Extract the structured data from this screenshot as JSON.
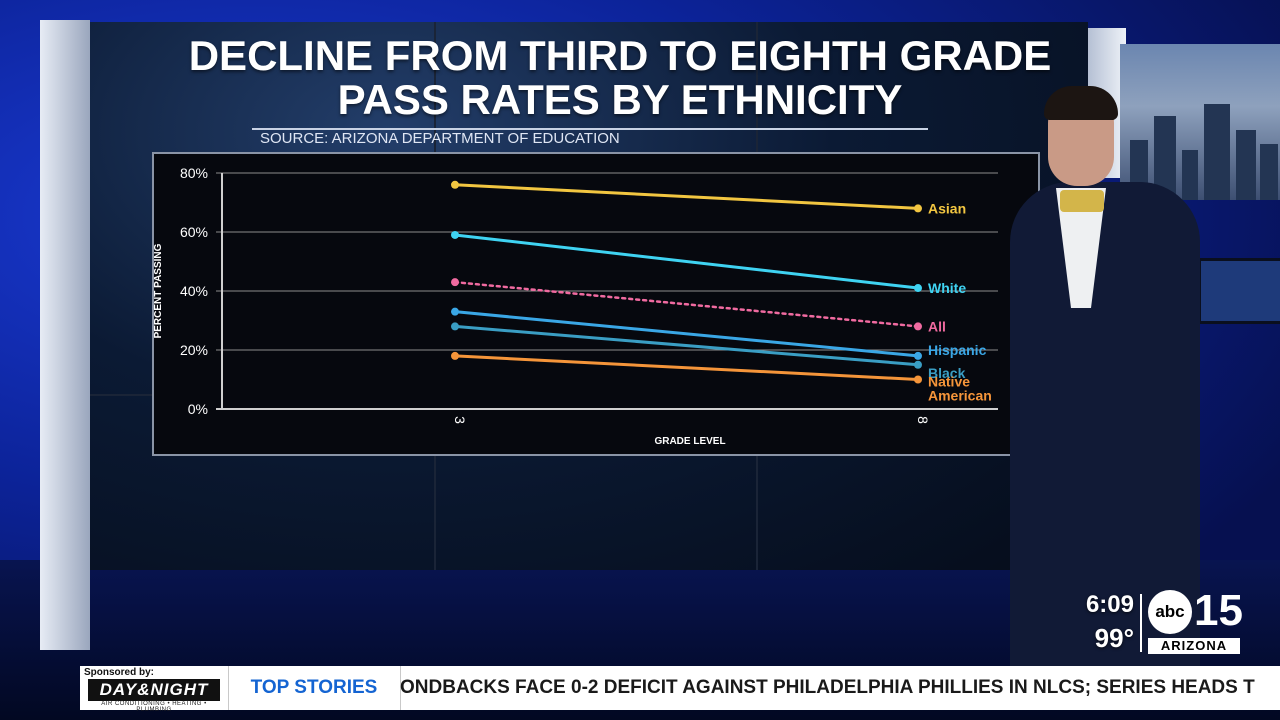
{
  "broadcast": {
    "title_line1": "DECLINE FROM THIRD TO EIGHTH GRADE",
    "title_line2": "PASS RATES BY ETHNICITY",
    "source": "SOURCE: ARIZONA DEPARTMENT OF EDUCATION"
  },
  "chart_data": {
    "type": "line",
    "title": "DECLINE FROM THIRD TO EIGHTH GRADE PASS RATES BY ETHNICITY",
    "xlabel": "GRADE LEVEL",
    "ylabel": "PERCENT PASSING",
    "x": [
      3,
      8
    ],
    "x_tick_labels": [
      "3",
      "8"
    ],
    "ylim": [
      0,
      80
    ],
    "y_ticks": [
      0,
      20,
      40,
      60,
      80
    ],
    "y_tick_labels": [
      "0%",
      "20%",
      "40%",
      "60%",
      "80%"
    ],
    "grid": true,
    "series": [
      {
        "name": "Asian",
        "label": "Asian",
        "values": [
          76,
          68
        ],
        "color": "#f2c641",
        "dashed": false
      },
      {
        "name": "White",
        "label": "White",
        "values": [
          59,
          41
        ],
        "color": "#3fd3f2",
        "dashed": false
      },
      {
        "name": "All",
        "label": "All",
        "values": [
          43,
          28
        ],
        "color": "#f06aa0",
        "dashed": true
      },
      {
        "name": "Hispanic",
        "label": "Hispanic",
        "values": [
          33,
          18
        ],
        "color": "#3aa7e6",
        "dashed": false
      },
      {
        "name": "Black",
        "label": "Black",
        "values": [
          28,
          15
        ],
        "color": "#3a9ec4",
        "dashed": false
      },
      {
        "name": "Native American",
        "label": "Native",
        "label2": "American",
        "values": [
          18,
          10
        ],
        "color": "#f5953a",
        "dashed": false
      }
    ]
  },
  "ticker": {
    "sponsored_by": "Sponsored by:",
    "sponsor_name": "DAY&NIGHT",
    "sponsor_sub": "AIR CONDITIONING • HEATING • PLUMBING",
    "section": "TOP STORIES",
    "crawl": "ONDBACKS FACE 0-2 DEFICIT AGAINST PHILADELPHIA PHILLIES IN NLCS; SERIES HEADS T"
  },
  "station": {
    "time": "6:09",
    "temperature": "99°",
    "network": "abc",
    "channel": "15",
    "market": "ARIZONA"
  },
  "colors": {
    "grid": "#8c8c8c",
    "axis": "#cfcfcf",
    "tick_text": "#ffffff"
  }
}
